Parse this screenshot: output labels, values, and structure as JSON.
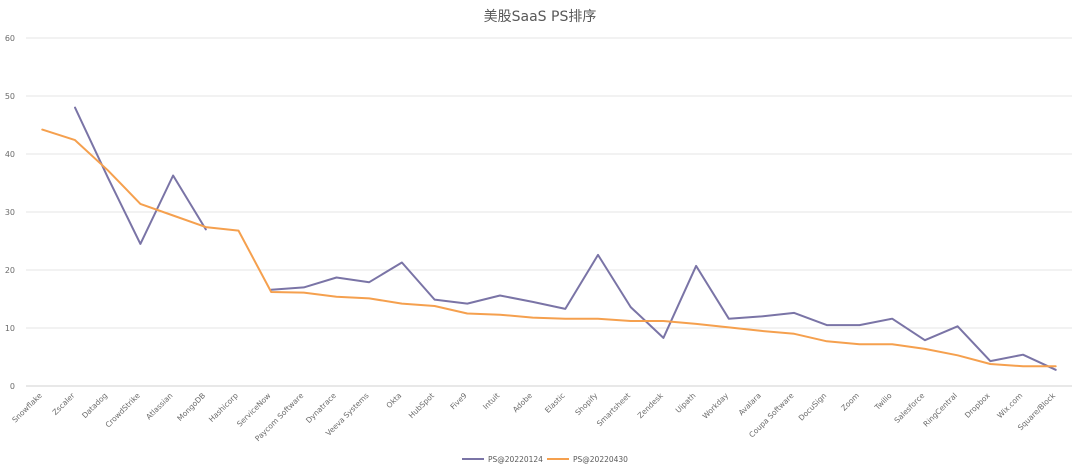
{
  "chart_data": {
    "type": "line",
    "title": "美股SaaS PS排序",
    "xlabel": "",
    "ylabel": "",
    "ylim": [
      0,
      60
    ],
    "yticks": [
      0,
      10,
      20,
      30,
      40,
      50,
      60
    ],
    "grid": true,
    "legend_position": "bottom",
    "categories": [
      "Snowflake",
      "Zscaler",
      "Datadog",
      "CrowdStrike",
      "Atlassian",
      "MongoDB",
      "Hashicorp",
      "ServiceNow",
      "Paycom Software",
      "Dynatrace",
      "Veeva Systems",
      "Okta",
      "HubSpot",
      "Five9",
      "Intuit",
      "Adobe",
      "Elastic",
      "Shopify",
      "Smartsheet",
      "Zendesk",
      "Uipath",
      "Workday",
      "Avalara",
      "Coupa Software",
      "DocuSign",
      "Zoom",
      "Twilio",
      "Salesforce",
      "RingCentral",
      "Dropbox",
      "Wix.com",
      "Square/Block"
    ],
    "series": [
      {
        "name": "PS@20220124",
        "color": "#7a74a6",
        "values": [
          null,
          48,
          36,
          24.5,
          36.3,
          27,
          null,
          16.6,
          17,
          18.7,
          17.9,
          21.3,
          14.9,
          14.2,
          15.6,
          14.5,
          13.3,
          22.6,
          13.6,
          8.3,
          20.7,
          11.6,
          12,
          12.6,
          10.5,
          10.5,
          11.6,
          7.9,
          10.3,
          4.3,
          5.4,
          2.8
        ]
      },
      {
        "name": "PS@20220430",
        "color": "#f5a04e",
        "values": [
          44.2,
          42.4,
          37.2,
          31.4,
          29.4,
          27.4,
          26.8,
          16.2,
          16.1,
          15.4,
          15.1,
          14.2,
          13.8,
          12.5,
          12.3,
          11.8,
          11.6,
          11.6,
          11.2,
          11.2,
          10.7,
          10.1,
          9.5,
          9,
          7.7,
          7.2,
          7.2,
          6.4,
          5.3,
          3.8,
          3.4,
          3.4
        ]
      }
    ]
  }
}
